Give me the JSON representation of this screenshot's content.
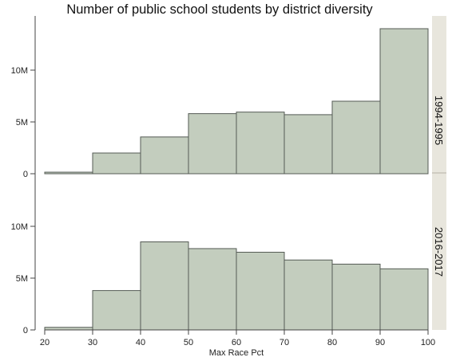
{
  "chart_data": {
    "type": "bar",
    "title": "Number of public school students by district diversity",
    "xlabel": "Max Race Pct",
    "ylabel": "",
    "x_ticks": [
      20,
      30,
      40,
      50,
      60,
      70,
      80,
      90,
      100
    ],
    "y_tick_values": [
      0,
      5000000,
      10000000
    ],
    "y_tick_labels": [
      "0",
      "5M",
      "10M"
    ],
    "xlim": [
      20,
      100
    ],
    "ylim": [
      0,
      15200000
    ],
    "bins": [
      [
        20,
        30
      ],
      [
        30,
        40
      ],
      [
        40,
        50
      ],
      [
        50,
        60
      ],
      [
        60,
        70
      ],
      [
        70,
        80
      ],
      [
        80,
        90
      ],
      [
        90,
        100
      ]
    ],
    "grid": false,
    "colors": {
      "bar_fill": "#c3cdbe",
      "bar_stroke": "#555b55",
      "strip": "#e8e6dd"
    },
    "facets": [
      {
        "name": "1994-1995",
        "values": [
          150000,
          2000000,
          3550000,
          5800000,
          5950000,
          5700000,
          7000000,
          14000000
        ]
      },
      {
        "name": "2016-2017",
        "values": [
          250000,
          3800000,
          8500000,
          7850000,
          7500000,
          6750000,
          6350000,
          5900000
        ]
      }
    ]
  }
}
